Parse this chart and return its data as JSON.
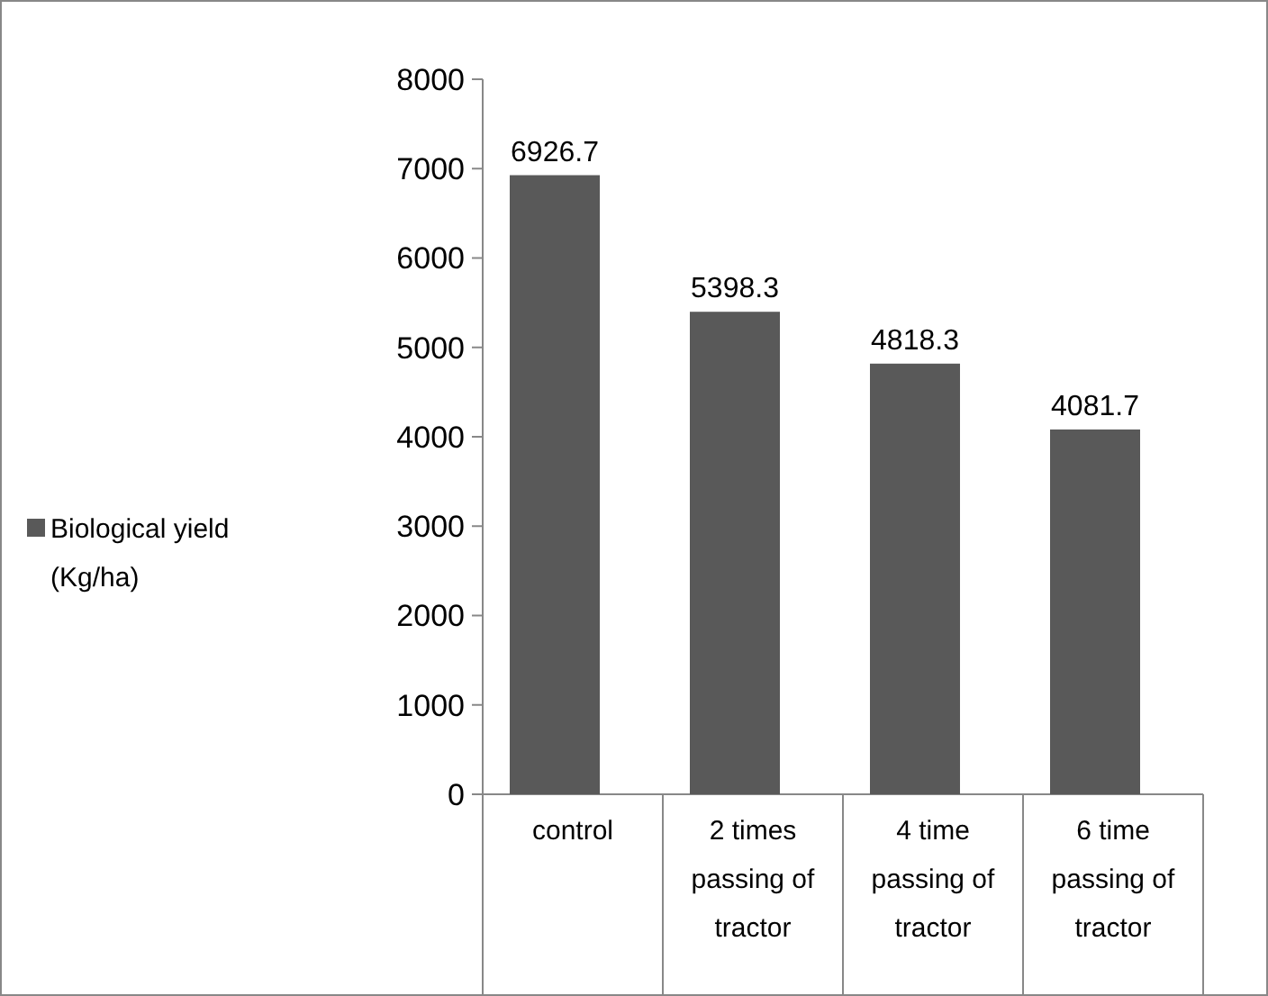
{
  "chart_data": {
    "type": "bar",
    "categories": [
      "control",
      "2 times passing of tractor",
      "4 time passing of tractor",
      "6 time passing of tractor"
    ],
    "series": [
      {
        "name": "Biological yield (Kg/ha)",
        "color": "#595959",
        "values": [
          6926.7,
          5398.3,
          4818.3,
          4081.7
        ]
      }
    ],
    "ylim": [
      0,
      8000
    ],
    "yticks": [
      0,
      1000,
      2000,
      3000,
      4000,
      5000,
      6000,
      7000,
      8000
    ],
    "data_labels": true,
    "grid": false,
    "legend": "left"
  }
}
